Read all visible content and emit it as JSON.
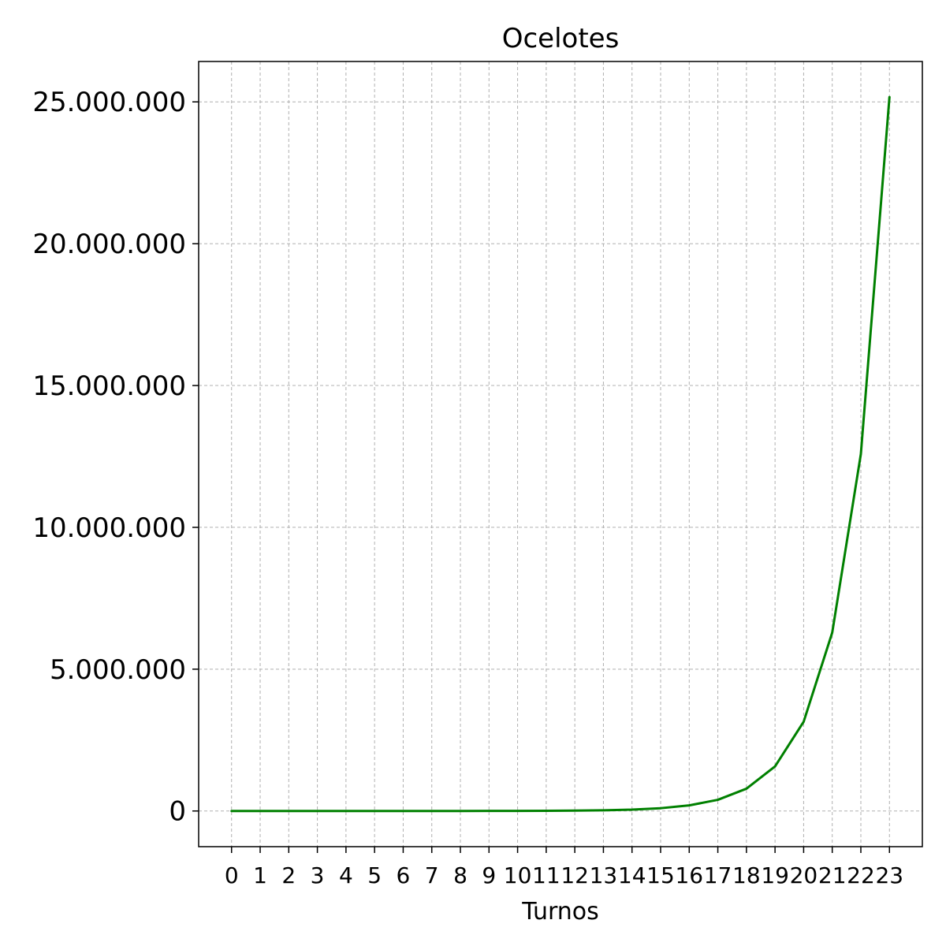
{
  "chart_data": {
    "type": "line",
    "title": "Ocelotes",
    "xlabel": "Turnos",
    "ylabel": "",
    "x": [
      0,
      1,
      2,
      3,
      4,
      5,
      6,
      7,
      8,
      9,
      10,
      11,
      12,
      13,
      14,
      15,
      16,
      17,
      18,
      19,
      20,
      21,
      22,
      23
    ],
    "x_tick_labels": [
      "0",
      "1",
      "2",
      "3",
      "4",
      "5",
      "6",
      "7",
      "8",
      "9",
      "10",
      "11",
      "12",
      "13",
      "14",
      "15",
      "16",
      "17",
      "18",
      "19",
      "20",
      "21",
      "22",
      "23"
    ],
    "series": [
      {
        "color": "#008000",
        "values": [
          3,
          6,
          12,
          24,
          48,
          96,
          192,
          384,
          768,
          1536,
          3072,
          6144,
          12288,
          24576,
          49152,
          98304,
          196608,
          393216,
          786432,
          1572864,
          3145728,
          6291456,
          12582912,
          25165824
        ]
      }
    ],
    "y_ticks": [
      0,
      5000000,
      10000000,
      15000000,
      20000000,
      25000000
    ],
    "y_tick_labels": [
      "0",
      "5.000.000",
      "10.000.000",
      "15.000.000",
      "20.000.000",
      "25.000.000"
    ],
    "xlim": [
      -1.15,
      24.15
    ],
    "ylim": [
      -1258291,
      26424115
    ],
    "grid": true,
    "legend": "none"
  }
}
